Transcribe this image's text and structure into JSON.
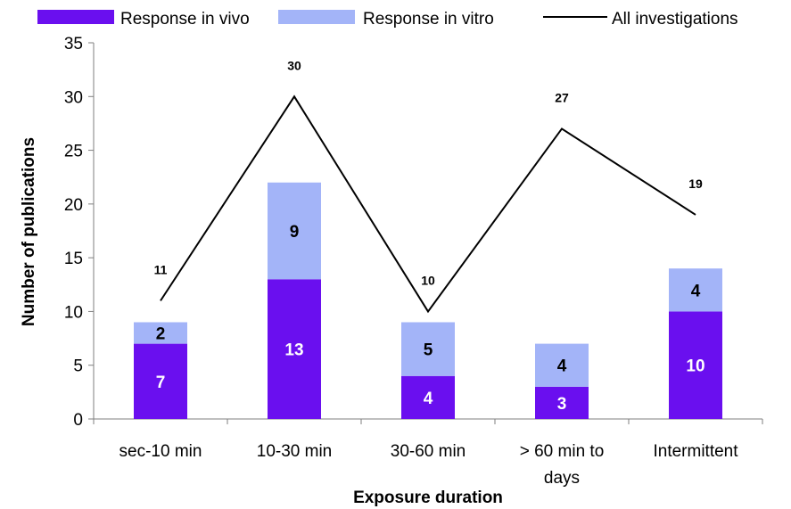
{
  "chart_data": {
    "type": "bar",
    "subtype": "stacked-bar-with-line",
    "xlabel": "Exposure duration",
    "ylabel": "Number of publications",
    "ylim": [
      0,
      35
    ],
    "yticks": [
      0,
      5,
      10,
      15,
      20,
      25,
      30,
      35
    ],
    "categories": [
      [
        "sec-10 min"
      ],
      [
        "10-30 min"
      ],
      [
        "30-60 min"
      ],
      [
        "> 60 min to",
        "days"
      ],
      [
        "Intermittent"
      ]
    ],
    "series": [
      {
        "name": "Response in vivo",
        "kind": "bar",
        "color": "#6a0fef",
        "label_color": "#ffffff",
        "values": [
          7,
          13,
          4,
          3,
          10
        ]
      },
      {
        "name": "Response in vitro",
        "kind": "bar",
        "color": "#a3b4f8",
        "label_color": "#000000",
        "values": [
          2,
          9,
          5,
          4,
          4
        ]
      },
      {
        "name": "All investigations",
        "kind": "line",
        "color": "#000000",
        "values": [
          11,
          30,
          10,
          27,
          19
        ]
      }
    ],
    "grid": false,
    "legend": "top"
  }
}
